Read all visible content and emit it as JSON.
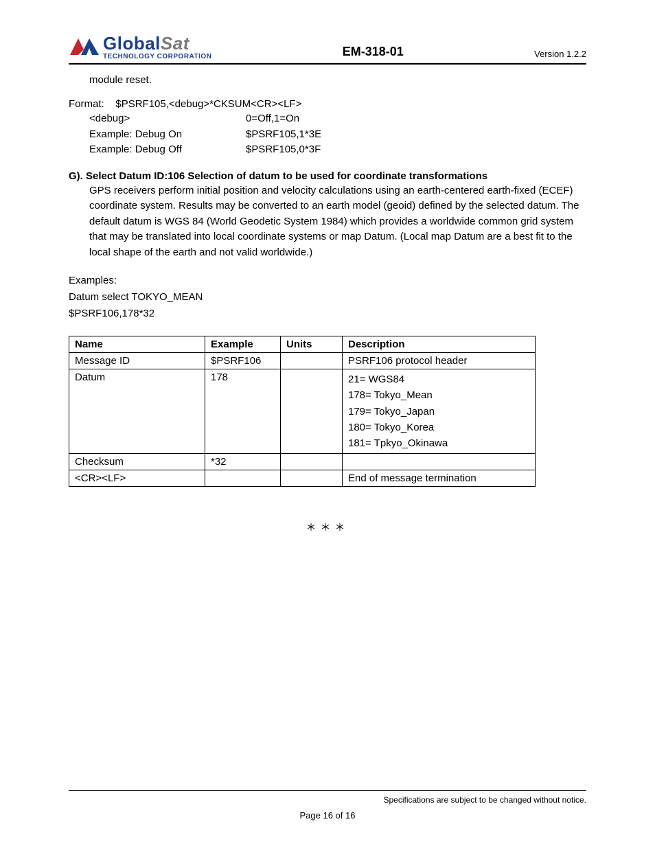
{
  "header": {
    "logo": {
      "name_main": "Global",
      "name_italic": "Sat",
      "subtitle": "TECHNOLOGY CORPORATION",
      "mark_color_red": "#c1272d",
      "mark_color_blue": "#1b3f8b"
    },
    "center": "EM-318-01",
    "version_label": "Version  1.2.2"
  },
  "intro_fragment": "module reset.",
  "format_block": {
    "format_label": "Format:",
    "format_value": "$PSRF105,<debug>*CKSUM<CR><LF>",
    "rows": [
      {
        "left": "<debug>",
        "right": "0=Off,1=On"
      },
      {
        "left": "Example: Debug On",
        "right": "$PSRF105,1*3E"
      },
      {
        "left": "Example: Debug Off",
        "right": "$PSRF105,0*3F"
      }
    ]
  },
  "section_g": {
    "heading": "G). Select Datum ID:106    Selection of datum to be used for coordinate transformations",
    "paragraph": "GPS receivers perform initial position and velocity calculations using an earth-centered earth-fixed (ECEF) coordinate system. Results may be converted to an earth model (geoid) defined by the selected datum. The default datum is WGS 84 (World Geodetic System 1984) which provides a worldwide common grid system that may be translated into local coordinate systems or map Datum. (Local map Datum are a best fit to the local shape of the earth and not valid worldwide.)"
  },
  "examples": {
    "label": "Examples:",
    "line1": "Datum select TOKYO_MEAN",
    "line2": "$PSRF106,178*32"
  },
  "table": {
    "columns": [
      "Name",
      "Example",
      "Units",
      "Description"
    ],
    "col_widths": [
      "198px",
      "110px",
      "90px",
      "auto"
    ],
    "rows": [
      {
        "c0": "Message ID",
        "c1": "$PSRF106",
        "c2": "",
        "c3": "PSRF106 protocol header"
      },
      {
        "c0": "Datum",
        "c1": "178",
        "c2": "",
        "c3": "21=   WGS84\n178= Tokyo_Mean\n179= Tokyo_Japan\n180= Tokyo_Korea\n181= Tpkyo_Okinawa"
      },
      {
        "c0": "Checksum",
        "c1": "*32",
        "c2": "",
        "c3": ""
      },
      {
        "c0": "<CR><LF>",
        "c1": "",
        "c2": "",
        "c3": "End of message termination"
      }
    ]
  },
  "end_mark": "＊＊＊",
  "footer": {
    "page": "Page 16 of 16",
    "note": "Specifications are subject to be changed without notice."
  }
}
